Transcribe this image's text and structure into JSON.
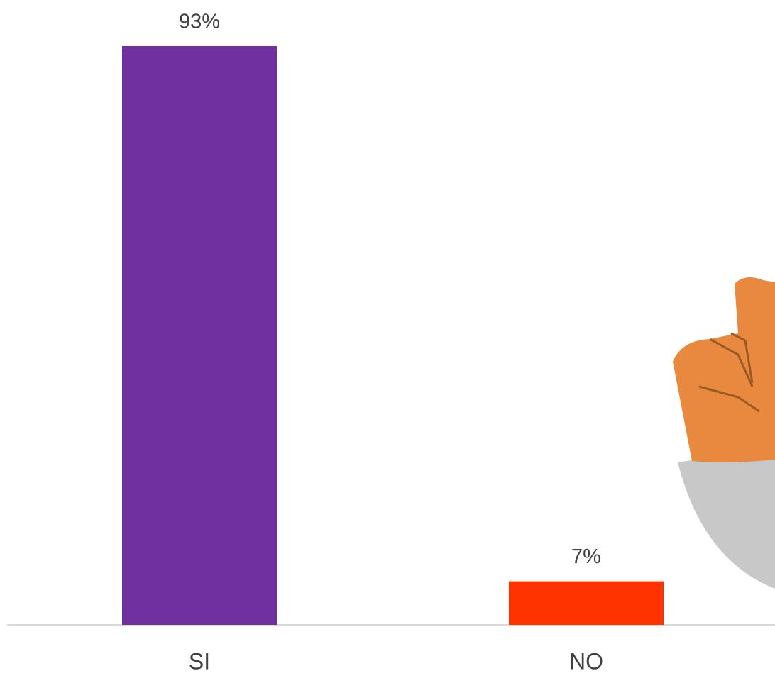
{
  "chart_data": {
    "type": "bar",
    "categories": [
      "SI",
      "NO"
    ],
    "values": [
      93,
      7
    ],
    "value_labels": [
      "93%",
      "7%"
    ],
    "colors": [
      "#7030a0",
      "#ff3300"
    ]
  }
}
